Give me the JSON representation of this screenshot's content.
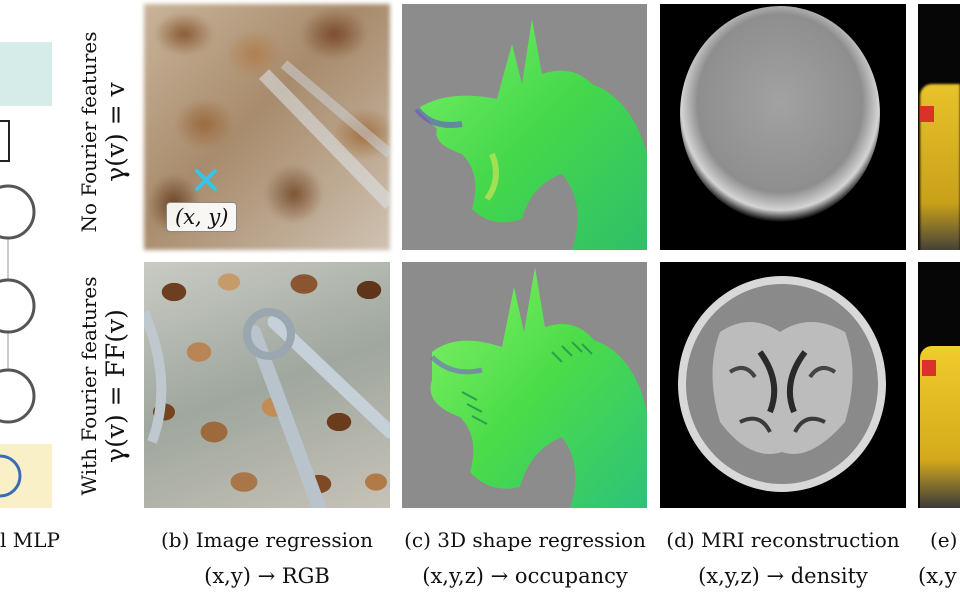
{
  "rows": [
    {
      "line1": "No Fourier features",
      "line2": "γ(v) = v"
    },
    {
      "line1": "With Fourier features",
      "line2": "γ(v) = FF(v)"
    }
  ],
  "left_panel": {
    "caption_fragment": "l MLP"
  },
  "image_point_label": "(x, y)",
  "columns": [
    {
      "caption": "(b) Image regression",
      "mapping": "(x,y) → RGB"
    },
    {
      "caption": "(c) 3D shape regression",
      "mapping": "(x,y,z) → occupancy"
    },
    {
      "caption": "(d) MRI reconstruction",
      "mapping": "(x,y,z) → density"
    },
    {
      "caption": "(e)",
      "mapping": "(x,y"
    }
  ],
  "colors": {
    "mlp_top_box": "#d6ece9",
    "mlp_bottom_box": "#faf0c8",
    "marker": "#36c5e8",
    "shape_background": "#8c8c8c",
    "shape_surface": "#52e04a"
  }
}
